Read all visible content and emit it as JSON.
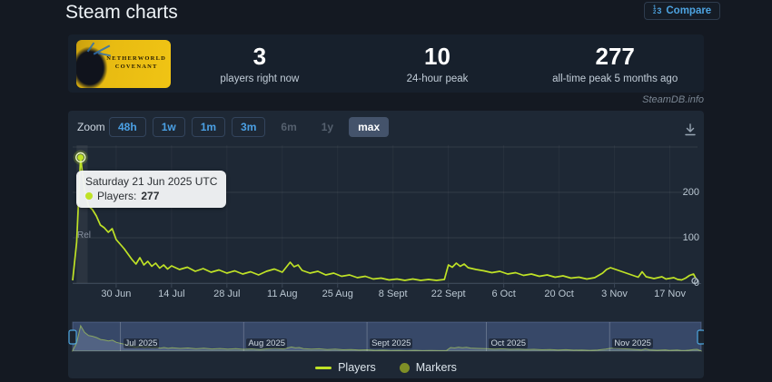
{
  "header": {
    "title": "Steam charts",
    "compare_label": "Compare"
  },
  "stats": {
    "game_title": "Netherworld Covenant",
    "capsule_line1": "NETHERWORLD",
    "capsule_line2": "COVENANT",
    "items": [
      {
        "value": "3",
        "label": "players right now"
      },
      {
        "value": "10",
        "label": "24-hour peak"
      },
      {
        "value": "277",
        "label": "all-time peak 5 months ago"
      }
    ]
  },
  "watermark": "SteamDB.info",
  "toolbar": {
    "zoom_label": "Zoom",
    "buttons": [
      {
        "label": "48h",
        "state": "enabled"
      },
      {
        "label": "1w",
        "state": "enabled"
      },
      {
        "label": "1m",
        "state": "enabled"
      },
      {
        "label": "3m",
        "state": "enabled"
      },
      {
        "label": "6m",
        "state": "disabled"
      },
      {
        "label": "1y",
        "state": "disabled"
      },
      {
        "label": "max",
        "state": "active"
      }
    ]
  },
  "tooltip": {
    "date": "Saturday 21 Jun 2025 UTC",
    "series": "Players:",
    "value": "277"
  },
  "plotband_label": "Rel",
  "legend": [
    {
      "swatch": "line",
      "label": "Players"
    },
    {
      "swatch": "dot",
      "label": "Markers"
    }
  ],
  "colors": {
    "accent_blue": "#4da3e0",
    "player_line": "#bfe226",
    "marker_dot": "#7f8f26",
    "tooltip_bg": "#f1f3f4",
    "navigator_mask": "#5a74b0",
    "card_bg": "#1e2835",
    "page_bg": "#141922"
  },
  "chart_data": {
    "type": "line",
    "title": "",
    "xlabel": "",
    "ylabel": "Players",
    "legend_position": "bottom",
    "grid": true,
    "date_origin": "2025-06-19",
    "day_span": 158,
    "x_ticks": [
      {
        "label": "30 Jun",
        "day": 11
      },
      {
        "label": "14 Jul",
        "day": 25
      },
      {
        "label": "28 Jul",
        "day": 39
      },
      {
        "label": "11 Aug",
        "day": 53
      },
      {
        "label": "25 Aug",
        "day": 67
      },
      {
        "label": "8 Sept",
        "day": 81
      },
      {
        "label": "22 Sept",
        "day": 95
      },
      {
        "label": "6 Oct",
        "day": 109
      },
      {
        "label": "20 Oct",
        "day": 123
      },
      {
        "label": "3 Nov",
        "day": 137
      },
      {
        "label": "17 Nov",
        "day": 151
      }
    ],
    "y_axis": {
      "labels": [
        0,
        100,
        200
      ],
      "gridlines": [
        0,
        100,
        200,
        300
      ],
      "max": 300
    },
    "navigator_months": [
      {
        "label": "Jul 2025",
        "day": 12
      },
      {
        "label": "Aug 2025",
        "day": 43
      },
      {
        "label": "Sept 2025",
        "day": 74
      },
      {
        "label": "Oct 2025",
        "day": 104
      },
      {
        "label": "Nov 2025",
        "day": 135
      }
    ],
    "plotband_days": [
      1,
      3.8
    ],
    "peak": {
      "date": "21 Jun 2025",
      "players": 277,
      "day": 2
    },
    "current": {
      "players": 3,
      "day": 158
    },
    "series_name": "Players",
    "points_format": "[day_offset, players]",
    "points": [
      [
        0,
        6
      ],
      [
        1,
        90
      ],
      [
        2,
        277
      ],
      [
        3,
        205
      ],
      [
        4,
        170
      ],
      [
        5,
        162
      ],
      [
        6,
        148
      ],
      [
        7,
        128
      ],
      [
        8,
        122
      ],
      [
        9,
        112
      ],
      [
        10,
        120
      ],
      [
        11,
        96
      ],
      [
        13,
        76
      ],
      [
        15,
        52
      ],
      [
        16,
        42
      ],
      [
        17,
        56
      ],
      [
        18,
        40
      ],
      [
        19,
        48
      ],
      [
        20,
        37
      ],
      [
        21,
        44
      ],
      [
        22,
        33
      ],
      [
        23,
        40
      ],
      [
        24,
        31
      ],
      [
        25,
        38
      ],
      [
        27,
        30
      ],
      [
        29,
        35
      ],
      [
        31,
        26
      ],
      [
        33,
        32
      ],
      [
        35,
        24
      ],
      [
        37,
        29
      ],
      [
        39,
        22
      ],
      [
        41,
        27
      ],
      [
        43,
        20
      ],
      [
        45,
        25
      ],
      [
        47,
        18
      ],
      [
        49,
        26
      ],
      [
        51,
        31
      ],
      [
        53,
        24
      ],
      [
        55,
        46
      ],
      [
        56,
        36
      ],
      [
        57,
        40
      ],
      [
        58,
        28
      ],
      [
        60,
        22
      ],
      [
        62,
        26
      ],
      [
        64,
        18
      ],
      [
        66,
        22
      ],
      [
        68,
        15
      ],
      [
        70,
        18
      ],
      [
        72,
        12
      ],
      [
        74,
        15
      ],
      [
        76,
        9
      ],
      [
        78,
        11
      ],
      [
        80,
        7
      ],
      [
        82,
        9
      ],
      [
        84,
        6
      ],
      [
        86,
        9
      ],
      [
        88,
        6
      ],
      [
        90,
        8
      ],
      [
        92,
        6
      ],
      [
        94,
        8
      ],
      [
        95,
        40
      ],
      [
        96,
        35
      ],
      [
        97,
        44
      ],
      [
        98,
        37
      ],
      [
        99,
        42
      ],
      [
        100,
        34
      ],
      [
        102,
        30
      ],
      [
        104,
        27
      ],
      [
        106,
        23
      ],
      [
        108,
        26
      ],
      [
        110,
        20
      ],
      [
        112,
        23
      ],
      [
        114,
        17
      ],
      [
        116,
        20
      ],
      [
        118,
        15
      ],
      [
        120,
        18
      ],
      [
        122,
        13
      ],
      [
        124,
        16
      ],
      [
        126,
        11
      ],
      [
        128,
        13
      ],
      [
        130,
        9
      ],
      [
        132,
        12
      ],
      [
        134,
        22
      ],
      [
        135,
        30
      ],
      [
        136,
        34
      ],
      [
        138,
        28
      ],
      [
        140,
        22
      ],
      [
        142,
        16
      ],
      [
        143,
        13
      ],
      [
        144,
        25
      ],
      [
        145,
        14
      ],
      [
        147,
        10
      ],
      [
        149,
        14
      ],
      [
        150,
        9
      ],
      [
        152,
        12
      ],
      [
        153,
        8
      ],
      [
        154,
        7
      ],
      [
        155,
        11
      ],
      [
        156,
        17
      ],
      [
        157,
        20
      ],
      [
        158,
        3
      ]
    ]
  }
}
